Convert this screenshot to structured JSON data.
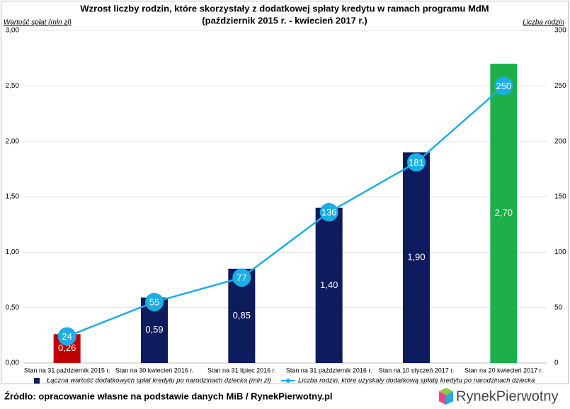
{
  "chart_data": {
    "type": "bar",
    "title": "Wzrost liczby rodzin, które skorzystały z dodatkowej spłaty kredytu w ramach programu MdM",
    "subtitle": "(październik 2015 r. - kwiecień 2017 r.)",
    "y_label": "Wartość spłat (mln zł)",
    "y2_label": "Liczba rodzin",
    "categories": [
      "Stan na 31 październik 2015 r.",
      "Stan na 30 kwiecień 2016 r.",
      "Stan na 31 lipiec 2016 r.",
      "Stan na 31 październik 2016 r.",
      "Stan na 10 styczeń 2017 r.",
      "Stan na 20 kwiecień 2017 r."
    ],
    "series": [
      {
        "name": "Łączna wartość dodatkowych spłat kredytu po narodzinach dziecka (mln zł)",
        "type": "bar",
        "color": "#0e1b5c",
        "colors": [
          "#c00000",
          "#0e1b5c",
          "#0e1b5c",
          "#0e1b5c",
          "#0e1b5c",
          "#1db04a"
        ],
        "values": [
          0.26,
          0.59,
          0.85,
          1.4,
          1.9,
          2.7
        ],
        "value_labels": [
          "0,26",
          "0,59",
          "0,85",
          "1,40",
          "1,90",
          "2,70"
        ]
      },
      {
        "name": "Liczba rodzin, które uzyskały dodatkową spłatę kredytu po narodzinach dziecka",
        "type": "line",
        "axis": "y2",
        "color": "#1aaee5",
        "values": [
          24,
          55,
          77,
          136,
          181,
          250
        ]
      }
    ],
    "ylim": [
      0,
      3
    ],
    "yticks": [
      {
        "value": 0,
        "label": "0,00"
      },
      {
        "value": 0.5,
        "label": "0,50"
      },
      {
        "value": 1,
        "label": "1,00"
      },
      {
        "value": 1.5,
        "label": "1,50"
      },
      {
        "value": 2,
        "label": "2,00"
      },
      {
        "value": 2.5,
        "label": "2,50"
      },
      {
        "value": 3,
        "label": "3,00"
      }
    ],
    "y2lim": [
      0,
      300
    ],
    "y2ticks": [
      0,
      50,
      100,
      150,
      200,
      250,
      300
    ],
    "grid": true
  },
  "source": "Źródło: opracowanie własne na podstawie danych MiB / RynekPierwotny.pl",
  "logo": "RynekPierwotny"
}
